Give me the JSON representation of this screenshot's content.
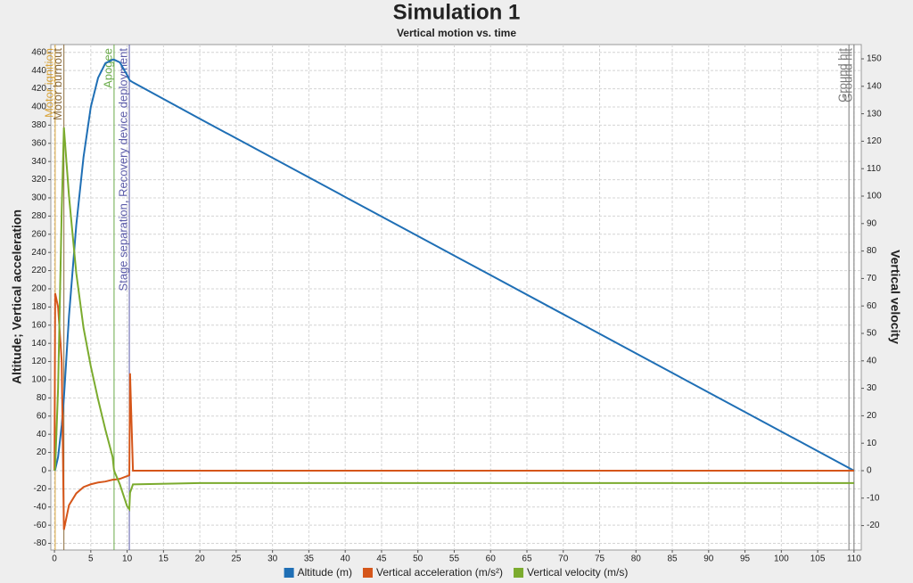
{
  "chart_data": {
    "type": "line",
    "title": "Simulation 1",
    "subtitle": "Vertical motion vs. time",
    "y_label": "Altitude; Vertical acceleration",
    "y2_label": "Vertical velocity",
    "x": [
      0,
      0.1,
      0.5,
      1.0,
      1.3,
      2,
      3,
      4,
      5,
      6,
      7,
      8,
      8.2,
      9,
      10,
      10.3,
      10.4,
      10.8,
      20,
      40,
      60,
      80,
      100,
      110
    ],
    "series": [
      {
        "name": "Altitude (m)",
        "color": "#1f6fb5",
        "values": [
          0,
          1,
          15,
          50,
          80,
          170,
          270,
          345,
          400,
          432,
          448,
          452,
          452,
          449,
          435,
          430,
          429,
          427,
          387,
          301,
          215,
          129,
          43,
          0
        ]
      },
      {
        "name": "Vertical acceleration (m/s²)",
        "color": "#d5561a",
        "values": [
          0,
          195,
          180,
          120,
          -65,
          -38,
          -25,
          -18,
          -15,
          -13,
          -12,
          -10,
          -10,
          -9,
          -6,
          -5,
          107,
          0,
          0,
          0,
          0,
          0,
          0,
          0
        ]
      },
      {
        "name": "Vertical velocity (m/s)",
        "color": "#7bab2e",
        "axis": "y2",
        "values": [
          0,
          1,
          30,
          95,
          125,
          100,
          72,
          52,
          38,
          26,
          15,
          5,
          0,
          -5,
          -13,
          -14,
          -8,
          -5,
          -4.5,
          -4.5,
          -4.5,
          -4.5,
          -4.5,
          -4.5
        ]
      }
    ],
    "events": [
      {
        "label": "Motor ignition",
        "x": 0.1,
        "color": "#d9a43a"
      },
      {
        "label": "Motor burnout",
        "x": 1.3,
        "color": "#8a6a3a"
      },
      {
        "label": "Apogee",
        "x": 8.2,
        "color": "#6aab4a"
      },
      {
        "label": "Stage separation, Recovery device deployment",
        "x": 10.3,
        "color": "#5a5aa8"
      },
      {
        "label": "Ground hit",
        "x": 109.3,
        "color": "#777777"
      },
      {
        "label": "Ground hit",
        "x": 110,
        "color": "#777777"
      }
    ],
    "xlim": [
      -0.5,
      111
    ],
    "ylim": [
      -87.3,
      468.6
    ],
    "y2lim": [
      -28.9,
      155.2
    ],
    "xticks": [
      0,
      5,
      10,
      15,
      20,
      25,
      30,
      35,
      40,
      45,
      50,
      55,
      60,
      65,
      70,
      75,
      80,
      85,
      90,
      95,
      100,
      105,
      110
    ],
    "yticks": [
      -80,
      -60,
      -40,
      -20,
      0,
      20,
      40,
      60,
      80,
      100,
      120,
      140,
      160,
      180,
      200,
      220,
      240,
      260,
      280,
      300,
      320,
      340,
      360,
      380,
      400,
      420,
      440,
      460
    ],
    "y2ticks": [
      -20,
      -10,
      0,
      10,
      20,
      30,
      40,
      50,
      60,
      70,
      80,
      90,
      100,
      110,
      120,
      130,
      140,
      150
    ],
    "grid": true
  }
}
